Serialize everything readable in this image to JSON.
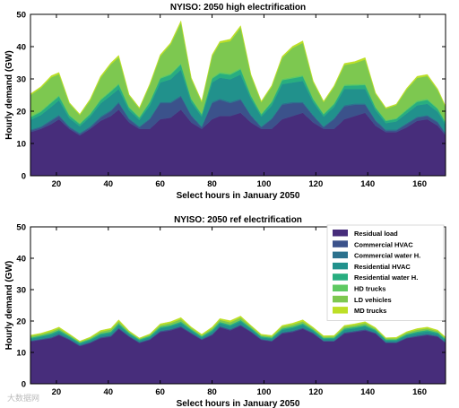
{
  "chart_data": [
    {
      "type": "area",
      "stacked": true,
      "title": "NYISO: 2050 high electrification",
      "xlabel": "Select hours in January 2050",
      "ylabel": "Hourly demand (GW)",
      "xlim": [
        10,
        170
      ],
      "ylim": [
        0,
        50
      ],
      "xticks": [
        20,
        40,
        60,
        80,
        100,
        120,
        140,
        160
      ],
      "yticks": [
        0,
        10,
        20,
        30,
        40,
        50
      ],
      "x": [
        10,
        14,
        18,
        21,
        25,
        29,
        33,
        37,
        41,
        44,
        48,
        52,
        56,
        60,
        64,
        68,
        72,
        76,
        80,
        83,
        87,
        91,
        95,
        99,
        103,
        107,
        111,
        115,
        119,
        123,
        127,
        131,
        135,
        139,
        143,
        147,
        151,
        155,
        159,
        163,
        167,
        170
      ],
      "series": [
        {
          "name": "Residual load",
          "color": "#472d7b",
          "values": [
            13.5,
            14.5,
            16,
            17.5,
            14.5,
            12.5,
            14.5,
            17,
            18.5,
            20.5,
            16.5,
            14.5,
            14.5,
            17.5,
            18,
            20.5,
            16.5,
            14.5,
            17.5,
            18.5,
            18.5,
            19.5,
            16.5,
            14.5,
            14.5,
            17.5,
            18.5,
            19.5,
            16.5,
            14.5,
            14.5,
            17.5,
            18.5,
            19.5,
            15.5,
            13.5,
            13.5,
            15,
            17,
            17.5,
            15.5,
            12.5
          ]
        },
        {
          "name": "Commercial HVAC",
          "color": "#3b528b",
          "values": [
            0.5,
            0.5,
            1,
            1,
            0.5,
            0.5,
            0.5,
            1,
            1.5,
            2,
            1,
            0.5,
            3,
            5,
            4.5,
            4,
            2,
            0.5,
            5,
            5,
            4,
            4,
            2,
            0.5,
            3,
            4.5,
            4,
            3,
            2,
            0.5,
            3,
            4,
            3.5,
            2.5,
            1.5,
            0.5,
            0.5,
            1,
            1,
            1,
            1,
            0.5
          ]
        },
        {
          "name": "Commercial water H.",
          "color": "#2c728e",
          "values": [
            0.3,
            0.3,
            0.4,
            0.4,
            0.3,
            0.3,
            0.3,
            0.4,
            0.4,
            0.4,
            0.3,
            0.3,
            0.3,
            0.4,
            0.4,
            0.4,
            0.3,
            0.3,
            0.4,
            0.4,
            0.4,
            0.4,
            0.3,
            0.3,
            0.3,
            0.4,
            0.4,
            0.4,
            0.3,
            0.3,
            0.3,
            0.4,
            0.4,
            0.4,
            0.3,
            0.3,
            0.3,
            0.3,
            0.3,
            0.3,
            0.3,
            0.3
          ]
        },
        {
          "name": "Residential HVAC",
          "color": "#21918c",
          "values": [
            3,
            3.5,
            4,
            4.5,
            2.5,
            2,
            3,
            4,
            4.5,
            4,
            2.5,
            2,
            4,
            6,
            7,
            8,
            4,
            3,
            6,
            6.5,
            7,
            7.5,
            5,
            3,
            4,
            6,
            6,
            6.5,
            4,
            3,
            3.5,
            5,
            4.5,
            4.5,
            3,
            2,
            2.5,
            3,
            3.5,
            3.5,
            3,
            2.5
          ]
        },
        {
          "name": "Residential water H.",
          "color": "#28ae80",
          "values": [
            0.8,
            1,
            1.2,
            1.2,
            0.8,
            0.7,
            0.8,
            1,
            1.2,
            1.4,
            0.8,
            0.7,
            1,
            1.2,
            1.4,
            1.6,
            0.9,
            0.7,
            1.2,
            1.3,
            1.4,
            1.6,
            0.9,
            0.7,
            1,
            1.2,
            1.3,
            1.4,
            0.9,
            0.7,
            0.9,
            1,
            1.1,
            1.2,
            0.8,
            0.7,
            0.8,
            1,
            1.1,
            1.2,
            0.9,
            0.7
          ]
        },
        {
          "name": "HD trucks",
          "color": "#5ec962",
          "values": [
            0.4,
            0.4,
            0.4,
            0.4,
            0.3,
            0.3,
            0.3,
            0.4,
            0.4,
            0.4,
            0.3,
            0.3,
            0.3,
            0.4,
            0.4,
            0.4,
            0.3,
            0.3,
            0.4,
            0.4,
            0.4,
            0.4,
            0.3,
            0.3,
            0.3,
            0.4,
            0.4,
            0.4,
            0.3,
            0.3,
            0.3,
            0.4,
            0.4,
            0.4,
            0.3,
            0.3,
            0.3,
            0.4,
            0.4,
            0.4,
            0.3,
            0.3
          ]
        },
        {
          "name": "LD vehicles",
          "color": "#7dc850",
          "values": [
            6.5,
            7,
            7.5,
            6.5,
            3.5,
            2.5,
            4,
            6.5,
            8,
            8,
            3.5,
            2.5,
            5,
            6.5,
            9,
            12.5,
            6,
            3.5,
            6.5,
            9,
            10,
            12.5,
            6,
            3.5,
            4.5,
            6.5,
            9,
            10,
            5,
            3.5,
            5,
            6,
            6.5,
            7.5,
            4,
            3.5,
            4,
            6,
            7,
            7,
            5.5,
            4.5
          ]
        },
        {
          "name": "MD trucks",
          "color": "#bddf26",
          "values": [
            0.4,
            0.4,
            0.5,
            0.5,
            0.3,
            0.3,
            0.4,
            0.5,
            0.5,
            0.6,
            0.3,
            0.3,
            0.4,
            0.5,
            0.5,
            0.6,
            0.4,
            0.3,
            0.5,
            0.5,
            0.6,
            0.6,
            0.4,
            0.3,
            0.4,
            0.5,
            0.5,
            0.6,
            0.4,
            0.3,
            0.4,
            0.5,
            0.5,
            0.6,
            0.3,
            0.3,
            0.3,
            0.4,
            0.5,
            0.5,
            0.4,
            0.3
          ]
        }
      ]
    },
    {
      "type": "area",
      "stacked": true,
      "title": "NYISO: 2050 ref electrification",
      "xlabel": "Select hours in January 2050",
      "ylabel": "Hourly demand (GW)",
      "xlim": [
        10,
        170
      ],
      "ylim": [
        0,
        50
      ],
      "xticks": [
        20,
        40,
        60,
        80,
        100,
        120,
        140,
        160
      ],
      "yticks": [
        0,
        10,
        20,
        30,
        40,
        50
      ],
      "legend": "top-right",
      "x": [
        10,
        14,
        18,
        21,
        25,
        29,
        33,
        37,
        41,
        44,
        48,
        52,
        56,
        60,
        64,
        68,
        72,
        76,
        80,
        83,
        87,
        91,
        95,
        99,
        103,
        107,
        111,
        115,
        119,
        123,
        127,
        131,
        135,
        139,
        143,
        147,
        151,
        155,
        159,
        163,
        167,
        170
      ],
      "series": [
        {
          "name": "Residual load",
          "color": "#472d7b",
          "values": [
            13.5,
            14,
            14.5,
            15.5,
            14,
            12,
            13,
            14.5,
            15,
            17.5,
            15,
            13,
            14,
            16.5,
            17,
            18,
            16,
            14,
            15.5,
            18,
            17,
            18.5,
            16.5,
            14,
            13.5,
            16,
            16.5,
            17.5,
            16,
            13.5,
            13.5,
            16,
            16.5,
            17,
            16,
            13,
            13,
            14.5,
            15,
            15.5,
            15,
            13
          ]
        },
        {
          "name": "Commercial HVAC",
          "color": "#3b528b",
          "values": [
            0.2,
            0.2,
            0.3,
            0.3,
            0.2,
            0.2,
            0.2,
            0.3,
            0.3,
            0.3,
            0.2,
            0.2,
            0.2,
            0.3,
            0.3,
            0.3,
            0.2,
            0.2,
            0.3,
            0.3,
            0.3,
            0.3,
            0.2,
            0.2,
            0.2,
            0.3,
            0.3,
            0.3,
            0.2,
            0.2,
            0.2,
            0.3,
            0.3,
            0.3,
            0.2,
            0.2,
            0.2,
            0.2,
            0.3,
            0.3,
            0.2,
            0.2
          ]
        },
        {
          "name": "Commercial water H.",
          "color": "#2c728e",
          "values": [
            0.1,
            0.1,
            0.1,
            0.1,
            0.1,
            0.1,
            0.1,
            0.1,
            0.1,
            0.1,
            0.1,
            0.1,
            0.1,
            0.1,
            0.1,
            0.1,
            0.1,
            0.1,
            0.1,
            0.1,
            0.1,
            0.1,
            0.1,
            0.1,
            0.1,
            0.1,
            0.1,
            0.1,
            0.1,
            0.1,
            0.1,
            0.1,
            0.1,
            0.1,
            0.1,
            0.1,
            0.1,
            0.1,
            0.1,
            0.1,
            0.1,
            0.1
          ]
        },
        {
          "name": "Residential HVAC",
          "color": "#21918c",
          "values": [
            0.6,
            0.7,
            0.8,
            0.8,
            0.6,
            0.5,
            0.6,
            0.7,
            0.8,
            0.9,
            0.6,
            0.5,
            0.6,
            0.8,
            0.9,
            1,
            0.7,
            0.5,
            0.8,
            0.9,
            1,
            1,
            0.7,
            0.5,
            0.6,
            0.8,
            0.9,
            0.9,
            0.6,
            0.5,
            0.6,
            0.8,
            0.8,
            0.9,
            0.6,
            0.5,
            0.5,
            0.7,
            0.8,
            0.8,
            0.7,
            0.6
          ]
        },
        {
          "name": "Residential water H.",
          "color": "#28ae80",
          "values": [
            0.3,
            0.3,
            0.4,
            0.4,
            0.3,
            0.3,
            0.3,
            0.4,
            0.4,
            0.4,
            0.3,
            0.3,
            0.3,
            0.4,
            0.4,
            0.4,
            0.3,
            0.3,
            0.4,
            0.4,
            0.4,
            0.4,
            0.3,
            0.3,
            0.3,
            0.4,
            0.4,
            0.4,
            0.3,
            0.3,
            0.3,
            0.4,
            0.4,
            0.4,
            0.3,
            0.3,
            0.3,
            0.3,
            0.4,
            0.4,
            0.3,
            0.3
          ]
        },
        {
          "name": "HD trucks",
          "color": "#5ec962",
          "values": [
            0.1,
            0.1,
            0.1,
            0.1,
            0.1,
            0.1,
            0.1,
            0.1,
            0.1,
            0.1,
            0.1,
            0.1,
            0.1,
            0.1,
            0.1,
            0.1,
            0.1,
            0.1,
            0.1,
            0.1,
            0.1,
            0.1,
            0.1,
            0.1,
            0.1,
            0.1,
            0.1,
            0.1,
            0.1,
            0.1,
            0.1,
            0.1,
            0.1,
            0.1,
            0.1,
            0.1,
            0.1,
            0.1,
            0.1,
            0.1,
            0.1,
            0.1
          ]
        },
        {
          "name": "LD vehicles",
          "color": "#7dc850",
          "values": [
            0.4,
            0.4,
            0.5,
            0.5,
            0.3,
            0.2,
            0.3,
            0.5,
            0.6,
            0.6,
            0.3,
            0.2,
            0.3,
            0.5,
            0.6,
            0.7,
            0.4,
            0.3,
            0.5,
            0.6,
            0.7,
            0.7,
            0.4,
            0.3,
            0.3,
            0.5,
            0.6,
            0.6,
            0.4,
            0.3,
            0.3,
            0.5,
            0.5,
            0.6,
            0.3,
            0.3,
            0.3,
            0.4,
            0.5,
            0.5,
            0.4,
            0.3
          ]
        },
        {
          "name": "MD trucks",
          "color": "#bddf26",
          "values": [
            0.3,
            0.3,
            0.4,
            0.4,
            0.3,
            0.2,
            0.3,
            0.4,
            0.4,
            0.5,
            0.3,
            0.2,
            0.3,
            0.4,
            0.4,
            0.5,
            0.3,
            0.3,
            0.4,
            0.4,
            0.5,
            0.5,
            0.3,
            0.3,
            0.3,
            0.4,
            0.4,
            0.5,
            0.3,
            0.3,
            0.3,
            0.4,
            0.4,
            0.4,
            0.3,
            0.2,
            0.3,
            0.3,
            0.4,
            0.4,
            0.3,
            0.3
          ]
        }
      ]
    }
  ],
  "watermark": "大数据网"
}
